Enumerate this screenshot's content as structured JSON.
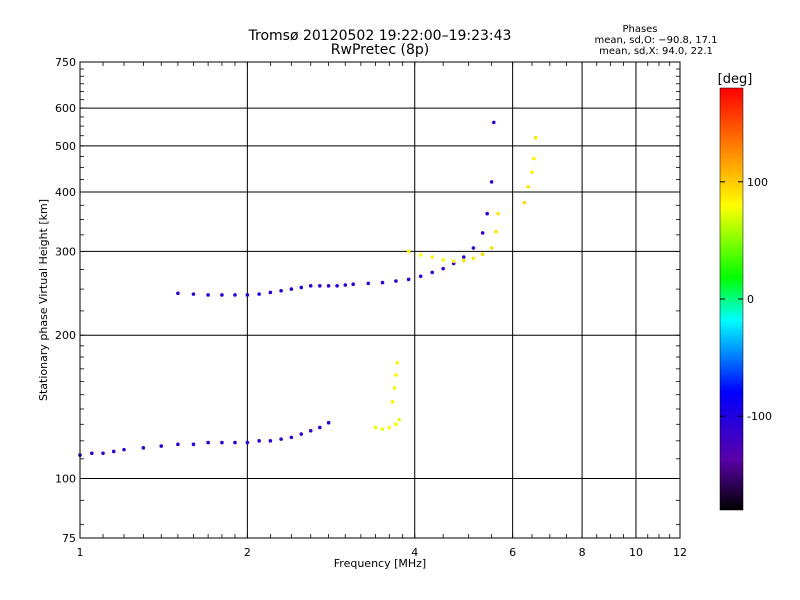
{
  "chart_data": {
    "type": "scatter",
    "title": "Tromsø 20120502 19:22:00–19:23:43",
    "subtitle": "RwPretec (8p)",
    "xlabel": "Frequency [MHz]",
    "ylabel": "Stationary phase Virtual Height [km]",
    "xscale": "log",
    "yscale": "log",
    "xlim": [
      1,
      12
    ],
    "ylim": [
      75,
      750
    ],
    "xticks": [
      1,
      2,
      4,
      6,
      8,
      10,
      12
    ],
    "yticks": [
      75,
      100,
      200,
      300,
      400,
      500,
      600,
      750
    ],
    "grid": true,
    "phases": {
      "heading": "Phases",
      "line_o": "mean, sd,O: −90.8, 17.1",
      "line_x": "mean, sd,X:  94.0, 22.1"
    },
    "colorbar": {
      "label": "[deg]",
      "ticks": [
        100,
        0,
        -100
      ],
      "range": [
        -180,
        180
      ]
    },
    "traces": [
      {
        "f": [
          1.0,
          1.05,
          1.1,
          1.15,
          1.2,
          1.3,
          1.4,
          1.5,
          1.6,
          1.7,
          1.8,
          1.9,
          2.0,
          2.1,
          2.2,
          2.3,
          2.4,
          2.5,
          2.6,
          2.7,
          2.8
        ],
        "h": [
          112,
          113,
          113,
          114,
          115,
          116,
          117,
          118,
          118,
          119,
          119,
          119,
          119,
          120,
          120,
          121,
          122,
          124,
          126,
          128,
          131
        ],
        "phase": [
          -110,
          -110,
          -110,
          -110,
          -110,
          -110,
          -110,
          -110,
          -110,
          -110,
          -110,
          -110,
          -110,
          -110,
          -110,
          -110,
          -110,
          -110,
          -110,
          -110,
          -110
        ]
      },
      {
        "f": [
          1.5,
          1.6,
          1.7,
          1.8,
          1.9,
          2.0,
          2.1,
          2.2,
          2.3,
          2.4,
          2.5,
          2.6,
          2.7,
          2.8,
          2.9,
          3.0,
          3.1,
          3.3,
          3.5,
          3.7,
          3.9,
          4.1,
          4.3,
          4.5,
          4.7,
          4.9,
          5.1,
          5.3,
          5.4,
          5.5,
          5.55
        ],
        "h": [
          245,
          244,
          243,
          243,
          243,
          243,
          244,
          246,
          248,
          250,
          252,
          254,
          254,
          254,
          254,
          255,
          256,
          257,
          258,
          260,
          262,
          266,
          271,
          276,
          283,
          292,
          305,
          328,
          360,
          420,
          560
        ],
        "phase": [
          -110,
          -110,
          -110,
          -110,
          -110,
          -110,
          -110,
          -110,
          -110,
          -110,
          -110,
          -110,
          -110,
          -110,
          -110,
          -110,
          -110,
          -110,
          -110,
          -110,
          -110,
          -110,
          -110,
          -110,
          -110,
          -110,
          -110,
          -110,
          -110,
          -110,
          -110
        ]
      },
      {
        "f": [
          3.9,
          4.1,
          4.3,
          4.5,
          4.7,
          4.9,
          5.1,
          5.3,
          5.5,
          5.6,
          5.65
        ],
        "h": [
          300,
          295,
          292,
          288,
          286,
          287,
          290,
          296,
          305,
          330,
          360
        ],
        "phase": [
          80,
          80,
          85,
          85,
          85,
          90,
          90,
          95,
          95,
          90,
          90
        ]
      },
      {
        "f": [
          6.3,
          6.4,
          6.5,
          6.55,
          6.6
        ],
        "h": [
          380,
          410,
          440,
          470,
          520
        ],
        "phase": [
          95,
          90,
          85,
          85,
          90
        ]
      },
      {
        "f": [
          3.4,
          3.5,
          3.6,
          3.7,
          3.75
        ],
        "h": [
          128,
          127,
          128,
          130,
          133
        ],
        "phase": [
          75,
          75,
          80,
          80,
          75
        ]
      },
      {
        "f": [
          3.65,
          3.68,
          3.7,
          3.72
        ],
        "h": [
          145,
          155,
          165,
          175
        ],
        "phase": [
          85,
          85,
          85,
          85
        ]
      }
    ]
  }
}
